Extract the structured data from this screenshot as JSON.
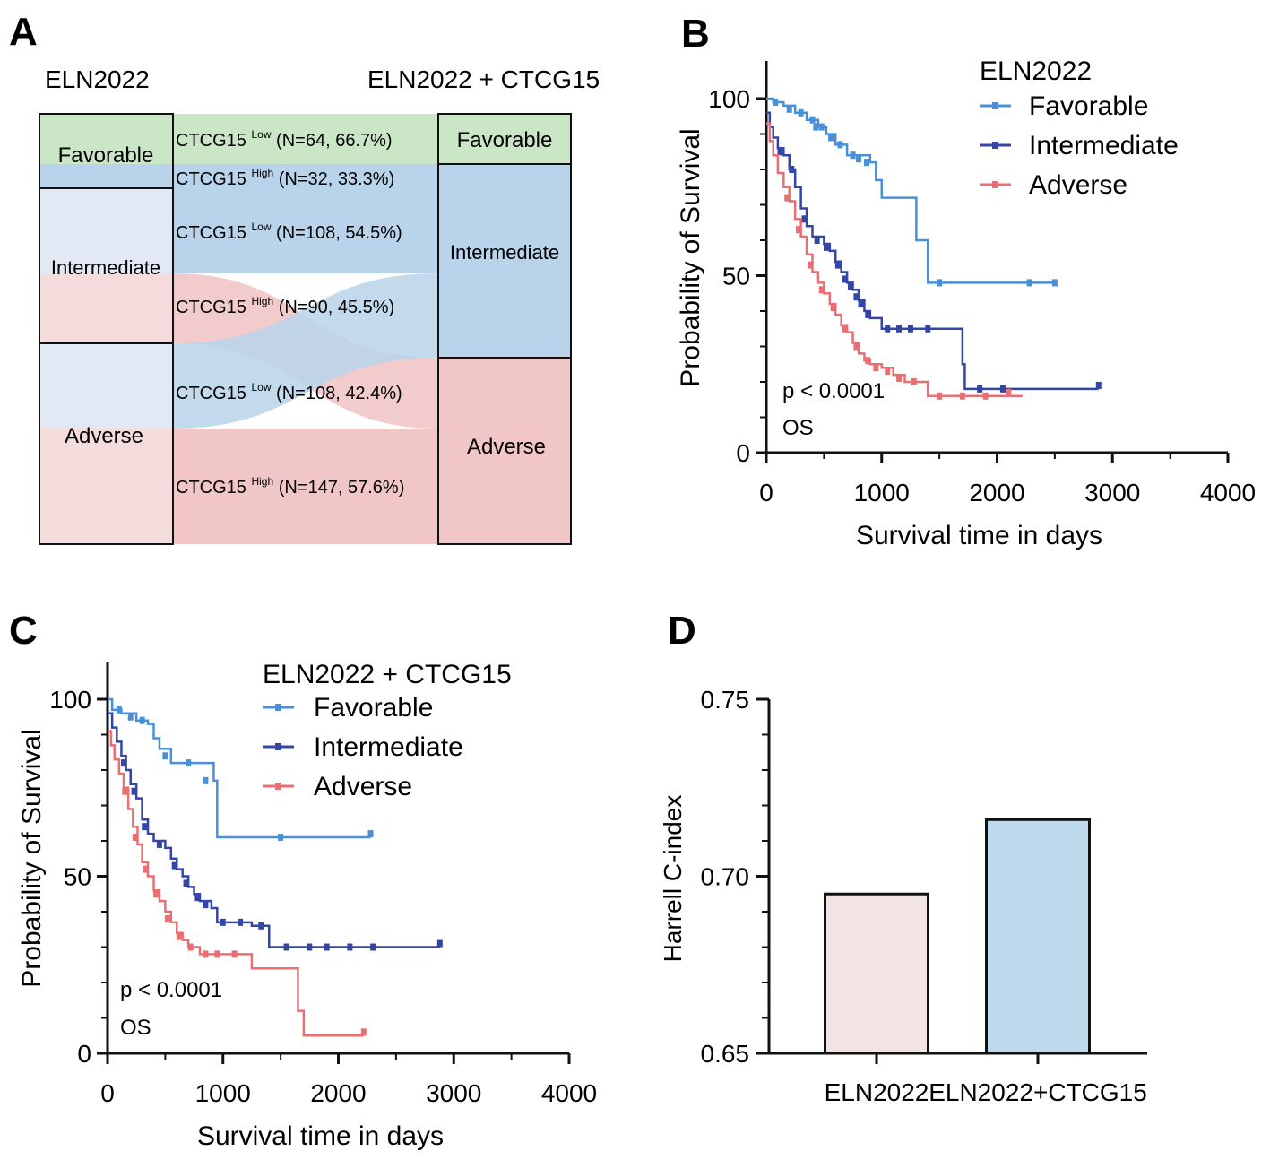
{
  "colors": {
    "favorable": "#4a90d9",
    "intermediate": "#3346a6",
    "adverse": "#ea6f73",
    "fav_fill": "#cbe6c7",
    "int_fill_left": "#e2e9f4",
    "adv_fill_left": "#f5dcdc",
    "blue_fill": "#b9d4ea",
    "pink_fill": "#f1c6c7",
    "bar1": "#f3e4e4",
    "bar2": "#bed8ec"
  },
  "panels": {
    "A": {
      "letter": "A",
      "left_title": "ELN2022",
      "right_title": "ELN2022 + CTCG15",
      "left_nodes": [
        "Favorable",
        "Intermediate",
        "Adverse"
      ],
      "right_nodes": [
        "Favorable",
        "Intermediate",
        "Adverse"
      ],
      "flows": [
        {
          "base": "CTCG15",
          "sup": "Low",
          "detail": "(N=64, 66.7%)"
        },
        {
          "base": "CTCG15",
          "sup": "High",
          "detail": "(N=32, 33.3%)"
        },
        {
          "base": "CTCG15",
          "sup": "Low",
          "detail": "(N=108, 54.5%)"
        },
        {
          "base": "CTCG15",
          "sup": "High",
          "detail": "(N=90, 45.5%)"
        },
        {
          "base": "CTCG15",
          "sup": "Low",
          "detail": "(N=108, 42.4%)"
        },
        {
          "base": "CTCG15",
          "sup": "High",
          "detail": "(N=147, 57.6%)"
        }
      ]
    },
    "B": {
      "letter": "B"
    },
    "C": {
      "letter": "C"
    },
    "D": {
      "letter": "D"
    }
  },
  "chart_data": [
    {
      "panel": "B",
      "type": "line",
      "subtype": "kaplan-meier",
      "legend_title": "ELN2022",
      "xlabel": "Survival time in days",
      "ylabel": "Probability of Survival",
      "xlim": [
        0,
        4000
      ],
      "ylim": [
        0,
        100
      ],
      "xticks": [
        0,
        1000,
        2000,
        3000,
        4000
      ],
      "yticks": [
        0,
        50,
        100
      ],
      "annotations": [
        "p < 0.0001",
        "OS"
      ],
      "series": [
        {
          "name": "Favorable",
          "color_key": "favorable",
          "points": [
            [
              0,
              100
            ],
            [
              60,
              99
            ],
            [
              150,
              98
            ],
            [
              250,
              96
            ],
            [
              350,
              94
            ],
            [
              450,
              92
            ],
            [
              520,
              90
            ],
            [
              600,
              87
            ],
            [
              700,
              84
            ],
            [
              900,
              82
            ],
            [
              950,
              77
            ],
            [
              1000,
              72
            ],
            [
              1300,
              72
            ],
            [
              1300,
              60
            ],
            [
              1400,
              60
            ],
            [
              1400,
              48
            ],
            [
              2500,
              48
            ]
          ],
          "censors": [
            [
              80,
              99
            ],
            [
              200,
              97
            ],
            [
              300,
              96
            ],
            [
              400,
              94
            ],
            [
              430,
              92
            ],
            [
              480,
              92
            ],
            [
              560,
              89
            ],
            [
              640,
              87
            ],
            [
              750,
              84
            ],
            [
              800,
              83
            ],
            [
              870,
              82
            ],
            [
              1500,
              48
            ],
            [
              2280,
              48
            ],
            [
              2500,
              48
            ]
          ]
        },
        {
          "name": "Intermediate",
          "color_key": "intermediate",
          "points": [
            [
              0,
              96
            ],
            [
              30,
              92
            ],
            [
              60,
              89
            ],
            [
              100,
              86
            ],
            [
              150,
              84
            ],
            [
              200,
              80
            ],
            [
              250,
              75
            ],
            [
              300,
              69
            ],
            [
              350,
              64
            ],
            [
              400,
              61
            ],
            [
              500,
              59
            ],
            [
              550,
              57
            ],
            [
              600,
              54
            ],
            [
              650,
              51
            ],
            [
              700,
              48
            ],
            [
              750,
              46
            ],
            [
              800,
              43
            ],
            [
              850,
              40
            ],
            [
              900,
              38
            ],
            [
              1000,
              35
            ],
            [
              1300,
              35
            ],
            [
              1650,
              35
            ],
            [
              1700,
              25
            ],
            [
              1720,
              18
            ],
            [
              2880,
              18
            ]
          ],
          "censors": [
            [
              120,
              85
            ],
            [
              220,
              80
            ],
            [
              330,
              66
            ],
            [
              440,
              60
            ],
            [
              520,
              58
            ],
            [
              620,
              53
            ],
            [
              680,
              49
            ],
            [
              730,
              47
            ],
            [
              780,
              44
            ],
            [
              820,
              42
            ],
            [
              880,
              39
            ],
            [
              1050,
              35
            ],
            [
              1150,
              35
            ],
            [
              1250,
              35
            ],
            [
              1400,
              35
            ],
            [
              1850,
              18
            ],
            [
              2050,
              18
            ],
            [
              2880,
              19
            ]
          ]
        },
        {
          "name": "Adverse",
          "color_key": "adverse",
          "points": [
            [
              0,
              93
            ],
            [
              30,
              88
            ],
            [
              60,
              84
            ],
            [
              100,
              79
            ],
            [
              150,
              75
            ],
            [
              200,
              71
            ],
            [
              250,
              66
            ],
            [
              300,
              61
            ],
            [
              350,
              56
            ],
            [
              400,
              51
            ],
            [
              450,
              48
            ],
            [
              500,
              45
            ],
            [
              550,
              42
            ],
            [
              600,
              39
            ],
            [
              650,
              36
            ],
            [
              700,
              34
            ],
            [
              750,
              31
            ],
            [
              800,
              28
            ],
            [
              850,
              26
            ],
            [
              900,
              25
            ],
            [
              1000,
              24
            ],
            [
              1100,
              22
            ],
            [
              1200,
              20
            ],
            [
              1300,
              20
            ],
            [
              1400,
              16
            ],
            [
              2220,
              16
            ]
          ],
          "censors": [
            [
              180,
              72
            ],
            [
              280,
              63
            ],
            [
              380,
              53
            ],
            [
              480,
              46
            ],
            [
              580,
              41
            ],
            [
              680,
              35
            ],
            [
              780,
              30
            ],
            [
              880,
              26
            ],
            [
              950,
              24
            ],
            [
              1050,
              23
            ],
            [
              1150,
              21
            ],
            [
              1280,
              20
            ],
            [
              1500,
              16
            ],
            [
              1700,
              16
            ],
            [
              1900,
              16
            ],
            [
              2100,
              17
            ]
          ]
        }
      ]
    },
    {
      "panel": "C",
      "type": "line",
      "subtype": "kaplan-meier",
      "legend_title": "ELN2022 + CTCG15",
      "xlabel": "Survival time in days",
      "ylabel": "Probability of Survival",
      "xlim": [
        0,
        4000
      ],
      "ylim": [
        0,
        100
      ],
      "xticks": [
        0,
        1000,
        2000,
        3000,
        4000
      ],
      "yticks": [
        0,
        50,
        100
      ],
      "annotations": [
        "p < 0.0001",
        "OS"
      ],
      "series": [
        {
          "name": "Favorable",
          "color_key": "favorable",
          "points": [
            [
              0,
              100
            ],
            [
              40,
              97
            ],
            [
              120,
              96
            ],
            [
              250,
              94
            ],
            [
              350,
              93
            ],
            [
              400,
              89
            ],
            [
              450,
              86
            ],
            [
              550,
              82
            ],
            [
              600,
              82
            ],
            [
              920,
              77
            ],
            [
              950,
              61
            ],
            [
              2280,
              61
            ]
          ],
          "censors": [
            [
              100,
              97
            ],
            [
              200,
              95
            ],
            [
              300,
              94
            ],
            [
              500,
              84
            ],
            [
              700,
              82
            ],
            [
              850,
              77
            ],
            [
              1500,
              61
            ],
            [
              2280,
              62
            ]
          ]
        },
        {
          "name": "Intermediate",
          "color_key": "intermediate",
          "points": [
            [
              0,
              96
            ],
            [
              40,
              92
            ],
            [
              80,
              88
            ],
            [
              120,
              84
            ],
            [
              160,
              80
            ],
            [
              200,
              76
            ],
            [
              250,
              72
            ],
            [
              300,
              66
            ],
            [
              350,
              62
            ],
            [
              400,
              60
            ],
            [
              500,
              58
            ],
            [
              550,
              55
            ],
            [
              600,
              52
            ],
            [
              650,
              50
            ],
            [
              700,
              47
            ],
            [
              750,
              45
            ],
            [
              800,
              43
            ],
            [
              900,
              41
            ],
            [
              950,
              37
            ],
            [
              1050,
              37
            ],
            [
              1100,
              37
            ],
            [
              1250,
              36
            ],
            [
              1400,
              33
            ],
            [
              1400,
              30
            ],
            [
              2880,
              30
            ]
          ],
          "censors": [
            [
              140,
              82
            ],
            [
              230,
              74
            ],
            [
              320,
              64
            ],
            [
              450,
              59
            ],
            [
              580,
              53
            ],
            [
              680,
              48
            ],
            [
              780,
              44
            ],
            [
              850,
              42
            ],
            [
              1000,
              37
            ],
            [
              1150,
              37
            ],
            [
              1330,
              36
            ],
            [
              1550,
              30
            ],
            [
              1750,
              30
            ],
            [
              1900,
              30
            ],
            [
              2100,
              30
            ],
            [
              2300,
              30
            ],
            [
              2880,
              31
            ]
          ]
        },
        {
          "name": "Adverse",
          "color_key": "adverse",
          "points": [
            [
              0,
              91
            ],
            [
              30,
              87
            ],
            [
              60,
              83
            ],
            [
              100,
              79
            ],
            [
              140,
              75
            ],
            [
              180,
              69
            ],
            [
              220,
              64
            ],
            [
              260,
              59
            ],
            [
              300,
              54
            ],
            [
              350,
              50
            ],
            [
              400,
              46
            ],
            [
              450,
              43
            ],
            [
              500,
              40
            ],
            [
              550,
              37
            ],
            [
              600,
              34
            ],
            [
              650,
              32
            ],
            [
              700,
              30
            ],
            [
              800,
              28
            ],
            [
              1000,
              28
            ],
            [
              1250,
              28
            ],
            [
              1250,
              24
            ],
            [
              1650,
              24
            ],
            [
              1650,
              12
            ],
            [
              1700,
              5
            ],
            [
              2220,
              5
            ]
          ],
          "censors": [
            [
              150,
              74
            ],
            [
              240,
              61
            ],
            [
              330,
              52
            ],
            [
              420,
              45
            ],
            [
              520,
              38
            ],
            [
              620,
              33
            ],
            [
              720,
              30
            ],
            [
              850,
              28
            ],
            [
              950,
              28
            ],
            [
              1100,
              28
            ],
            [
              2220,
              6
            ]
          ]
        }
      ]
    },
    {
      "panel": "D",
      "type": "bar",
      "categories": [
        "ELN2022",
        "ELN2022+CTCG15"
      ],
      "values": [
        0.695,
        0.716
      ],
      "ylabel": "Harrell C-index",
      "ylim": [
        0.65,
        0.75
      ],
      "yticks": [
        "0.65",
        "0.70",
        "0.75"
      ]
    }
  ]
}
